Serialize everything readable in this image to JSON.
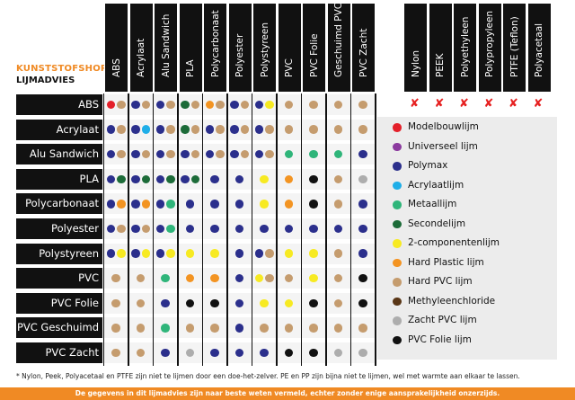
{
  "brand": {
    "line1": "KUNSTSTOFSHOP",
    "line2": "LIJMADVIES"
  },
  "chart_data": {
    "type": "table",
    "columns": [
      "ABS",
      "Acrylaat",
      "Alu Sandwich",
      "PLA",
      "Polycarbonaat",
      "Polyester",
      "Polystyreen",
      "PVC",
      "PVC Folie",
      "Geschuimd PVC",
      "PVC Zacht"
    ],
    "rows": [
      "ABS",
      "Acrylaat",
      "Alu Sandwich",
      "PLA",
      "Polycarbonaat",
      "Polyester",
      "Polystyreen",
      "PVC",
      "PVC Folie",
      "PVC Geschuimd",
      "PVC Zacht"
    ],
    "cells": [
      [
        [
          "red",
          "tan"
        ],
        [
          "blue",
          "tan"
        ],
        [
          "blue",
          "tan"
        ],
        [
          "green",
          "tan"
        ],
        [
          "orange",
          "tan"
        ],
        [
          "blue",
          "tan"
        ],
        [
          "blue",
          "yellow"
        ],
        [
          "tan"
        ],
        [
          "tan"
        ],
        [
          "tan"
        ],
        [
          "tan"
        ]
      ],
      [
        [
          "blue",
          "tan"
        ],
        [
          "blue",
          "lightblue"
        ],
        [
          "blue",
          "tan"
        ],
        [
          "green",
          "tan"
        ],
        [
          "blue",
          "tan"
        ],
        [
          "blue",
          "tan"
        ],
        [
          "blue",
          "tan"
        ],
        [
          "tan"
        ],
        [
          "tan"
        ],
        [
          "tan"
        ],
        [
          "tan"
        ]
      ],
      [
        [
          "blue",
          "tan"
        ],
        [
          "blue",
          "tan"
        ],
        [
          "blue",
          "tan"
        ],
        [
          "blue",
          "tan"
        ],
        [
          "blue",
          "tan"
        ],
        [
          "blue",
          "tan"
        ],
        [
          "blue",
          "tan"
        ],
        [
          "teal"
        ],
        [
          "teal"
        ],
        [
          "teal"
        ],
        [
          "blue"
        ]
      ],
      [
        [
          "blue",
          "green"
        ],
        [
          "blue",
          "green"
        ],
        [
          "blue",
          "green"
        ],
        [
          "blue",
          "green"
        ],
        [
          "blue"
        ],
        [
          "blue"
        ],
        [
          "yellow"
        ],
        [
          "orange"
        ],
        [
          "black"
        ],
        [
          "tan"
        ],
        [
          "gray"
        ]
      ],
      [
        [
          "blue",
          "orange"
        ],
        [
          "blue",
          "orange"
        ],
        [
          "blue",
          "teal"
        ],
        [
          "blue"
        ],
        [
          "blue"
        ],
        [
          "blue"
        ],
        [
          "yellow"
        ],
        [
          "orange"
        ],
        [
          "black"
        ],
        [
          "tan"
        ],
        [
          "blue"
        ]
      ],
      [
        [
          "blue",
          "tan"
        ],
        [
          "blue",
          "tan"
        ],
        [
          "blue",
          "teal"
        ],
        [
          "blue"
        ],
        [
          "blue"
        ],
        [
          "blue"
        ],
        [
          "blue"
        ],
        [
          "blue"
        ],
        [
          "blue"
        ],
        [
          "blue"
        ],
        [
          "blue"
        ]
      ],
      [
        [
          "blue",
          "yellow"
        ],
        [
          "blue",
          "yellow"
        ],
        [
          "blue",
          "yellow"
        ],
        [
          "yellow"
        ],
        [
          "yellow"
        ],
        [
          "blue"
        ],
        [
          "blue",
          "tan"
        ],
        [
          "yellow"
        ],
        [
          "yellow"
        ],
        [
          "tan"
        ],
        [
          "blue"
        ]
      ],
      [
        [
          "tan"
        ],
        [
          "tan"
        ],
        [
          "teal"
        ],
        [
          "orange"
        ],
        [
          "orange"
        ],
        [
          "blue"
        ],
        [
          "yellow",
          "tan"
        ],
        [
          "tan"
        ],
        [
          "yellow"
        ],
        [
          "tan"
        ],
        [
          "black"
        ]
      ],
      [
        [
          "tan"
        ],
        [
          "tan"
        ],
        [
          "blue"
        ],
        [
          "black"
        ],
        [
          "black"
        ],
        [
          "blue"
        ],
        [
          "yellow"
        ],
        [
          "yellow"
        ],
        [
          "black"
        ],
        [
          "tan"
        ],
        [
          "black"
        ]
      ],
      [
        [
          "tan"
        ],
        [
          "tan"
        ],
        [
          "teal"
        ],
        [
          "tan"
        ],
        [
          "tan"
        ],
        [
          "blue"
        ],
        [
          "tan"
        ],
        [
          "tan"
        ],
        [
          "tan"
        ],
        [
          "tan"
        ],
        [
          "tan"
        ]
      ],
      [
        [
          "tan"
        ],
        [
          "tan"
        ],
        [
          "blue"
        ],
        [
          "gray"
        ],
        [
          "blue"
        ],
        [
          "blue"
        ],
        [
          "blue"
        ],
        [
          "black"
        ],
        [
          "black"
        ],
        [
          "gray"
        ],
        [
          "gray"
        ]
      ]
    ],
    "excluded_columns": [
      "Nylon",
      "PEEK",
      "Polyethyleen",
      "Polypropyleen",
      "PTFE (Teflon)",
      "Polyacetaal"
    ],
    "excluded_mark": "✘",
    "legend": [
      {
        "label": "Modelbouwlijm",
        "color": "red"
      },
      {
        "label": "Universeel lijm",
        "color": "purple"
      },
      {
        "label": "Polymax",
        "color": "blue"
      },
      {
        "label": "Acrylaatlijm",
        "color": "lightblue"
      },
      {
        "label": "Metaallijm",
        "color": "teal"
      },
      {
        "label": "Secondelijm",
        "color": "green"
      },
      {
        "label": "2-componentenlijm",
        "color": "yellow"
      },
      {
        "label": "Hard Plastic lijm",
        "color": "orange"
      },
      {
        "label": "Hard PVC lijm",
        "color": "tan"
      },
      {
        "label": "Methyleenchloride",
        "color": "brown"
      },
      {
        "label": "Zacht PVC lijm",
        "color": "gray"
      },
      {
        "label": "PVC Folie lijm",
        "color": "black"
      }
    ],
    "colors": {
      "red": "#e4202a",
      "purple": "#8b3a9e",
      "blue": "#2b2f8c",
      "lightblue": "#1eaee8",
      "teal": "#2fb57a",
      "green": "#1c6b38",
      "yellow": "#f7ea22",
      "orange": "#f39422",
      "tan": "#c59c6e",
      "brown": "#5a3717",
      "gray": "#adadad",
      "black": "#111111"
    }
  },
  "footnote": "* Nylon, Peek, Polyacetaal en PTFE zijn niet te lijmen door een doe-het-zelver. PE en PP zijn bijna niet te lijmen, wel met warmte aan elkaar te lassen.",
  "disclaimer": "De gegevens in dit lijmadvies zijn naar beste weten vermeld, echter zonder enige aansprakelijkheid onzerzijds."
}
